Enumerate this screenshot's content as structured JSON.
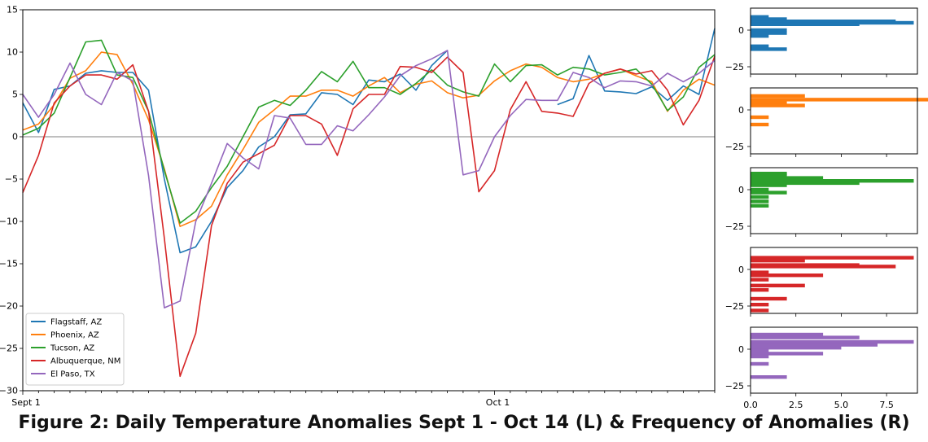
{
  "caption": "Figure 2: Daily Temperature Anomalies Sept 1 - Oct 14 (L) & Frequency of Anomalies (R)",
  "chart_data": [
    {
      "type": "line",
      "x_tick_labels": [
        {
          "day": 1,
          "label": "Sept 1"
        },
        {
          "day": 31,
          "label": "Oct 1"
        }
      ],
      "xlim": [
        1,
        45
      ],
      "ylim": [
        -30,
        15
      ],
      "y_ticks": [
        15,
        10,
        5,
        0,
        -5,
        -10,
        -15,
        -20,
        -25,
        -30
      ],
      "zero_line": true,
      "grid": false,
      "legend_position": "lower-left",
      "series": [
        {
          "name": "Flagstaff, AZ",
          "color": "#1f77b4",
          "values": [
            4.0,
            0.5,
            5.6,
            6.0,
            7.5,
            7.8,
            7.6,
            7.6,
            5.5,
            -5.0,
            -13.7,
            -13.0,
            -10.0,
            -6.0,
            -4.0,
            -1.2,
            0.0,
            2.6,
            2.7,
            5.2,
            5.0,
            3.8,
            6.7,
            6.5,
            7.4,
            5.5,
            8.4,
            10.2,
            null,
            null,
            null,
            null,
            null,
            null,
            3.8,
            4.5,
            9.6,
            5.4,
            5.3,
            5.1,
            5.9,
            4.3,
            6.0,
            5.0,
            12.8
          ]
        },
        {
          "name": "Phoenix, AZ",
          "color": "#ff7f0e",
          "values": [
            0.8,
            1.5,
            3.8,
            6.9,
            7.8,
            10.0,
            9.7,
            6.2,
            2.0,
            -3.8,
            -10.6,
            -9.8,
            -8.2,
            -4.5,
            -1.5,
            1.7,
            3.2,
            4.8,
            4.8,
            5.5,
            5.5,
            4.8,
            6.0,
            7.0,
            5.2,
            6.2,
            6.6,
            5.2,
            4.6,
            4.9,
            6.6,
            7.8,
            8.6,
            8.2,
            7.0,
            6.5,
            6.8,
            7.5,
            8.0,
            7.2,
            6.5,
            3.0,
            5.5,
            6.8,
            6.1
          ]
        },
        {
          "name": "Tucson, AZ",
          "color": "#2ca02c",
          "values": [
            0.2,
            1.0,
            2.8,
            7.0,
            11.2,
            11.4,
            7.3,
            7.0,
            3.0,
            -4.0,
            -10.2,
            -8.8,
            -6.0,
            -3.5,
            0.0,
            3.5,
            4.3,
            3.7,
            5.5,
            7.7,
            6.5,
            8.9,
            5.8,
            5.8,
            5.0,
            6.3,
            7.9,
            6.1,
            5.3,
            4.8,
            8.6,
            6.5,
            8.4,
            8.5,
            7.3,
            8.2,
            8.0,
            7.3,
            7.6,
            8.0,
            6.2,
            3.1,
            4.7,
            8.2,
            9.7
          ]
        },
        {
          "name": "Albuquerque, NM",
          "color": "#d62728",
          "values": [
            -6.6,
            -2.2,
            4.0,
            6.0,
            7.3,
            7.3,
            6.8,
            8.5,
            3.0,
            -12.0,
            -28.3,
            -23.2,
            -10.5,
            -5.5,
            -3.0,
            -2.0,
            -1.0,
            2.5,
            2.5,
            1.5,
            -2.2,
            3.3,
            5.0,
            5.0,
            8.3,
            8.2,
            7.6,
            9.4,
            7.6,
            -6.5,
            -4.0,
            3.2,
            6.5,
            3.0,
            2.8,
            2.4,
            6.3,
            7.5,
            8.0,
            7.4,
            7.8,
            5.5,
            1.4,
            4.3,
            9.5
          ]
        },
        {
          "name": "El Paso, TX",
          "color": "#9467bd",
          "values": [
            5.0,
            2.3,
            5.0,
            8.7,
            5.0,
            3.8,
            7.6,
            6.6,
            -4.6,
            -20.2,
            -19.4,
            -10.0,
            -5.5,
            -0.8,
            -2.5,
            -3.8,
            2.5,
            2.2,
            -0.9,
            -0.9,
            1.3,
            0.7,
            2.6,
            4.7,
            7.2,
            8.4,
            9.2,
            10.2,
            -4.5,
            -4.0,
            0.0,
            2.5,
            4.4,
            4.3,
            4.3,
            7.6,
            7.0,
            5.8,
            6.6,
            6.5,
            6.0,
            7.5,
            6.5,
            7.5,
            9.0
          ]
        }
      ]
    },
    {
      "type": "bar",
      "orientation": "horizontal",
      "panels": [
        {
          "series": "Flagstaff, AZ",
          "color": "#1f77b4",
          "bins": [
            {
              "y": 9,
              "count": 1
            },
            {
              "y": 7.5,
              "count": 2
            },
            {
              "y": 6,
              "count": 8
            },
            {
              "y": 5,
              "count": 9
            },
            {
              "y": 4,
              "count": 6
            },
            {
              "y": 0,
              "count": 2
            },
            {
              "y": -2,
              "count": 2
            },
            {
              "y": -4,
              "count": 1
            },
            {
              "y": -11,
              "count": 1
            },
            {
              "y": -13,
              "count": 2
            }
          ]
        },
        {
          "series": "Phoenix, AZ",
          "color": "#ff7f0e",
          "bins": [
            {
              "y": 9.5,
              "count": 3
            },
            {
              "y": 7,
              "count": 13
            },
            {
              "y": 5,
              "count": 2
            },
            {
              "y": 3,
              "count": 3
            },
            {
              "y": -5,
              "count": 1
            },
            {
              "y": -10,
              "count": 1
            }
          ]
        },
        {
          "series": "Tucson, AZ",
          "color": "#2ca02c",
          "bins": [
            {
              "y": 11,
              "count": 2
            },
            {
              "y": 10,
              "count": 2
            },
            {
              "y": 8,
              "count": 4
            },
            {
              "y": 6,
              "count": 9
            },
            {
              "y": 4.5,
              "count": 6
            },
            {
              "y": 3,
              "count": 2
            },
            {
              "y": 0,
              "count": 1
            },
            {
              "y": -2,
              "count": 2
            },
            {
              "y": -5,
              "count": 1
            },
            {
              "y": -8,
              "count": 1
            },
            {
              "y": -11,
              "count": 1
            }
          ]
        },
        {
          "series": "Albuquerque, NM",
          "color": "#d62728",
          "bins": [
            {
              "y": 8,
              "count": 9
            },
            {
              "y": 6,
              "count": 3
            },
            {
              "y": 3,
              "count": 6
            },
            {
              "y": 2,
              "count": 8
            },
            {
              "y": -2,
              "count": 1
            },
            {
              "y": -4,
              "count": 4
            },
            {
              "y": -7,
              "count": 1
            },
            {
              "y": -11,
              "count": 3
            },
            {
              "y": -14,
              "count": 1
            },
            {
              "y": -20,
              "count": 2
            },
            {
              "y": -24,
              "count": 1
            },
            {
              "y": -28,
              "count": 1
            }
          ]
        },
        {
          "series": "El Paso, TX",
          "color": "#9467bd",
          "bins": [
            {
              "y": 10,
              "count": 4
            },
            {
              "y": 8,
              "count": 6
            },
            {
              "y": 5,
              "count": 9
            },
            {
              "y": 3,
              "count": 7
            },
            {
              "y": 1,
              "count": 5
            },
            {
              "y": -1,
              "count": 1
            },
            {
              "y": -3,
              "count": 4
            },
            {
              "y": -5,
              "count": 1
            },
            {
              "y": -10,
              "count": 1
            },
            {
              "y": -19,
              "count": 2
            }
          ]
        }
      ],
      "ylim": [
        -30,
        15
      ],
      "y_ticks": [
        0,
        -25
      ],
      "xlim": [
        0,
        9.2
      ],
      "x_ticks": [
        0,
        2.5,
        5,
        7.5
      ],
      "x_tick_labels": [
        "0.0",
        "2.5",
        "5.0",
        "7.5"
      ]
    }
  ]
}
